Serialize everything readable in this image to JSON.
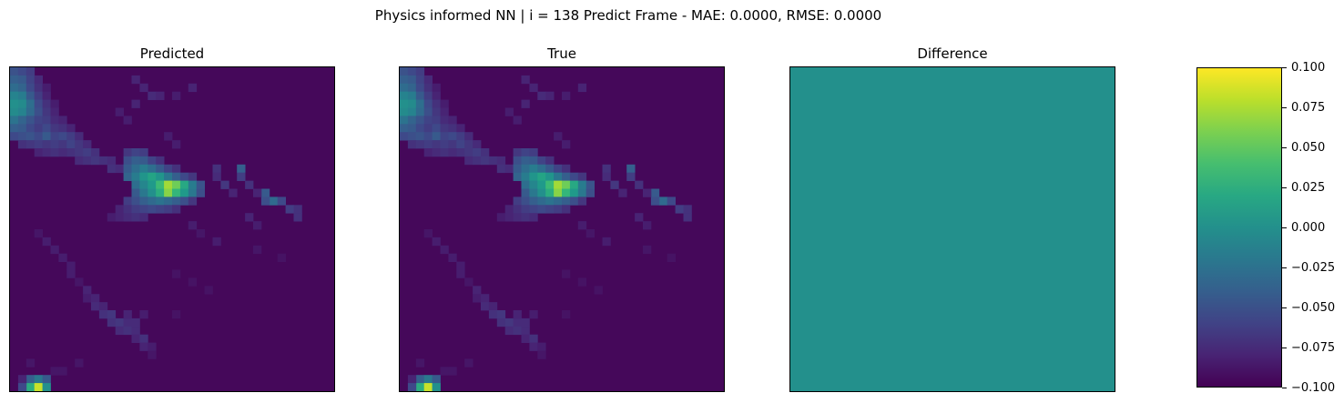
{
  "figure": {
    "title": "Physics informed NN | i = 138 Predict Frame - MAE: 0.0000, RMSE: 0.0000"
  },
  "chart_data": [
    {
      "type": "heatmap",
      "title": "Predicted",
      "grid": false,
      "colormap": "viridis",
      "rows": 40,
      "cols": 40,
      "background_value": 0.02,
      "cells": [
        [
          0,
          0,
          0.25
        ],
        [
          0,
          1,
          0.22
        ],
        [
          0,
          2,
          0.18
        ],
        [
          1,
          0,
          0.3
        ],
        [
          1,
          1,
          0.28
        ],
        [
          1,
          2,
          0.2
        ],
        [
          1,
          3,
          0.12
        ],
        [
          2,
          0,
          0.35
        ],
        [
          2,
          1,
          0.32
        ],
        [
          2,
          2,
          0.22
        ],
        [
          2,
          3,
          0.14
        ],
        [
          2,
          4,
          0.08
        ],
        [
          3,
          0,
          0.45
        ],
        [
          3,
          1,
          0.42
        ],
        [
          3,
          2,
          0.28
        ],
        [
          3,
          3,
          0.18
        ],
        [
          3,
          4,
          0.1
        ],
        [
          4,
          0,
          0.5
        ],
        [
          4,
          1,
          0.48
        ],
        [
          4,
          2,
          0.36
        ],
        [
          4,
          3,
          0.22
        ],
        [
          4,
          4,
          0.14
        ],
        [
          4,
          5,
          0.08
        ],
        [
          5,
          0,
          0.48
        ],
        [
          5,
          1,
          0.45
        ],
        [
          5,
          2,
          0.34
        ],
        [
          5,
          3,
          0.24
        ],
        [
          5,
          4,
          0.16
        ],
        [
          5,
          5,
          0.1
        ],
        [
          6,
          0,
          0.38
        ],
        [
          6,
          1,
          0.32
        ],
        [
          6,
          2,
          0.26
        ],
        [
          6,
          3,
          0.2
        ],
        [
          6,
          4,
          0.18
        ],
        [
          6,
          5,
          0.12
        ],
        [
          6,
          6,
          0.1
        ],
        [
          7,
          0,
          0.3
        ],
        [
          7,
          1,
          0.28
        ],
        [
          7,
          2,
          0.22
        ],
        [
          7,
          3,
          0.18
        ],
        [
          7,
          4,
          0.22
        ],
        [
          7,
          5,
          0.16
        ],
        [
          7,
          6,
          0.14
        ],
        [
          7,
          7,
          0.1
        ],
        [
          8,
          0,
          0.22
        ],
        [
          8,
          1,
          0.24
        ],
        [
          8,
          2,
          0.26
        ],
        [
          8,
          3,
          0.22
        ],
        [
          8,
          4,
          0.28
        ],
        [
          8,
          5,
          0.2
        ],
        [
          8,
          6,
          0.22
        ],
        [
          8,
          7,
          0.18
        ],
        [
          8,
          8,
          0.12
        ],
        [
          9,
          1,
          0.14
        ],
        [
          9,
          2,
          0.16
        ],
        [
          9,
          3,
          0.18
        ],
        [
          9,
          4,
          0.16
        ],
        [
          9,
          5,
          0.18
        ],
        [
          9,
          6,
          0.16
        ],
        [
          9,
          7,
          0.2
        ],
        [
          9,
          8,
          0.16
        ],
        [
          9,
          9,
          0.12
        ],
        [
          10,
          3,
          0.1
        ],
        [
          10,
          4,
          0.12
        ],
        [
          10,
          5,
          0.14
        ],
        [
          10,
          6,
          0.12
        ],
        [
          10,
          7,
          0.14
        ],
        [
          10,
          8,
          0.16
        ],
        [
          10,
          9,
          0.18
        ],
        [
          10,
          10,
          0.14
        ],
        [
          11,
          8,
          0.12
        ],
        [
          11,
          9,
          0.14
        ],
        [
          11,
          10,
          0.16
        ],
        [
          11,
          11,
          0.14
        ],
        [
          11,
          12,
          0.12
        ],
        [
          12,
          12,
          0.14
        ],
        [
          12,
          13,
          0.12
        ],
        [
          5,
          13,
          0.08
        ],
        [
          6,
          14,
          0.08
        ],
        [
          4,
          15,
          0.1
        ],
        [
          8,
          19,
          0.08
        ],
        [
          9,
          20,
          0.08
        ],
        [
          1,
          15,
          0.1
        ],
        [
          2,
          16,
          0.1
        ],
        [
          3,
          17,
          0.12
        ],
        [
          3,
          18,
          0.1
        ],
        [
          2,
          22,
          0.1
        ],
        [
          3,
          20,
          0.08
        ],
        [
          10,
          14,
          0.16
        ],
        [
          10,
          15,
          0.2
        ],
        [
          10,
          16,
          0.18
        ],
        [
          11,
          14,
          0.24
        ],
        [
          11,
          15,
          0.3
        ],
        [
          11,
          16,
          0.28
        ],
        [
          11,
          17,
          0.2
        ],
        [
          11,
          18,
          0.14
        ],
        [
          12,
          14,
          0.28
        ],
        [
          12,
          15,
          0.36
        ],
        [
          12,
          16,
          0.42
        ],
        [
          12,
          17,
          0.36
        ],
        [
          12,
          18,
          0.28
        ],
        [
          12,
          19,
          0.2
        ],
        [
          12,
          20,
          0.14
        ],
        [
          13,
          14,
          0.32
        ],
        [
          13,
          15,
          0.42
        ],
        [
          13,
          16,
          0.52
        ],
        [
          13,
          17,
          0.58
        ],
        [
          13,
          18,
          0.52
        ],
        [
          13,
          19,
          0.4
        ],
        [
          13,
          20,
          0.3
        ],
        [
          13,
          21,
          0.22
        ],
        [
          13,
          22,
          0.16
        ],
        [
          14,
          15,
          0.36
        ],
        [
          14,
          16,
          0.46
        ],
        [
          14,
          17,
          0.54
        ],
        [
          14,
          18,
          0.68
        ],
        [
          14,
          19,
          0.86
        ],
        [
          14,
          20,
          0.78
        ],
        [
          14,
          21,
          0.6
        ],
        [
          14,
          22,
          0.42
        ],
        [
          14,
          23,
          0.26
        ],
        [
          15,
          15,
          0.28
        ],
        [
          15,
          16,
          0.4
        ],
        [
          15,
          17,
          0.5
        ],
        [
          15,
          18,
          0.62
        ],
        [
          15,
          19,
          0.82
        ],
        [
          15,
          20,
          0.66
        ],
        [
          15,
          21,
          0.54
        ],
        [
          15,
          22,
          0.4
        ],
        [
          15,
          23,
          0.24
        ],
        [
          16,
          14,
          0.18
        ],
        [
          16,
          15,
          0.24
        ],
        [
          16,
          16,
          0.3
        ],
        [
          16,
          17,
          0.34
        ],
        [
          16,
          18,
          0.38
        ],
        [
          16,
          19,
          0.34
        ],
        [
          16,
          20,
          0.3
        ],
        [
          16,
          21,
          0.24
        ],
        [
          16,
          22,
          0.16
        ],
        [
          17,
          13,
          0.1
        ],
        [
          17,
          14,
          0.14
        ],
        [
          17,
          15,
          0.18
        ],
        [
          17,
          16,
          0.2
        ],
        [
          17,
          17,
          0.22
        ],
        [
          17,
          18,
          0.2
        ],
        [
          17,
          19,
          0.18
        ],
        [
          17,
          20,
          0.14
        ],
        [
          18,
          12,
          0.08
        ],
        [
          18,
          13,
          0.1
        ],
        [
          18,
          14,
          0.12
        ],
        [
          18,
          15,
          0.14
        ],
        [
          18,
          16,
          0.12
        ],
        [
          12,
          25,
          0.14
        ],
        [
          13,
          25,
          0.12
        ],
        [
          14,
          26,
          0.16
        ],
        [
          15,
          27,
          0.1
        ],
        [
          15,
          31,
          0.28
        ],
        [
          16,
          32,
          0.34
        ],
        [
          16,
          31,
          0.24
        ],
        [
          16,
          33,
          0.22
        ],
        [
          17,
          34,
          0.18
        ],
        [
          17,
          35,
          0.14
        ],
        [
          18,
          35,
          0.14
        ],
        [
          12,
          28,
          0.3
        ],
        [
          13,
          28,
          0.18
        ],
        [
          14,
          29,
          0.14
        ],
        [
          15,
          30,
          0.1
        ],
        [
          18,
          29,
          0.1
        ],
        [
          19,
          30,
          0.08
        ],
        [
          19,
          22,
          0.08
        ],
        [
          20,
          23,
          0.06
        ],
        [
          21,
          25,
          0.08
        ],
        [
          22,
          30,
          0.06
        ],
        [
          23,
          33,
          0.05
        ],
        [
          20,
          3,
          0.06
        ],
        [
          21,
          4,
          0.08
        ],
        [
          22,
          5,
          0.08
        ],
        [
          23,
          6,
          0.08
        ],
        [
          24,
          7,
          0.08
        ],
        [
          25,
          7,
          0.08
        ],
        [
          26,
          8,
          0.06
        ],
        [
          27,
          9,
          0.1
        ],
        [
          28,
          9,
          0.08
        ],
        [
          28,
          10,
          0.1
        ],
        [
          29,
          10,
          0.12
        ],
        [
          29,
          11,
          0.1
        ],
        [
          30,
          11,
          0.14
        ],
        [
          30,
          12,
          0.16
        ],
        [
          31,
          12,
          0.14
        ],
        [
          31,
          13,
          0.16
        ],
        [
          31,
          14,
          0.12
        ],
        [
          32,
          13,
          0.12
        ],
        [
          32,
          14,
          0.14
        ],
        [
          32,
          15,
          0.12
        ],
        [
          33,
          15,
          0.1
        ],
        [
          33,
          16,
          0.14
        ],
        [
          34,
          16,
          0.1
        ],
        [
          34,
          17,
          0.08
        ],
        [
          30,
          14,
          0.1
        ],
        [
          31,
          15,
          0.12
        ],
        [
          30,
          16,
          0.08
        ],
        [
          35,
          17,
          0.06
        ],
        [
          36,
          8,
          0.06
        ],
        [
          37,
          5,
          0.06
        ],
        [
          37,
          6,
          0.06
        ],
        [
          36,
          2,
          0.06
        ],
        [
          38,
          2,
          0.3
        ],
        [
          38,
          3,
          0.4
        ],
        [
          38,
          4,
          0.28
        ],
        [
          39,
          2,
          0.62
        ],
        [
          39,
          3,
          0.92
        ],
        [
          39,
          4,
          0.5
        ],
        [
          38,
          1,
          0.1
        ],
        [
          39,
          1,
          0.22
        ],
        [
          25,
          20,
          0.05
        ],
        [
          26,
          22,
          0.05
        ],
        [
          27,
          24,
          0.05
        ],
        [
          30,
          20,
          0.05
        ]
      ]
    },
    {
      "type": "heatmap",
      "title": "True",
      "grid": false,
      "colormap": "viridis",
      "same_as": "Predicted"
    },
    {
      "type": "heatmap",
      "title": "Difference",
      "grid": false,
      "colormap": "viridis",
      "value": 0.0,
      "vmin": -0.1,
      "vmax": 0.1
    },
    {
      "type": "colorbar",
      "colormap": "viridis",
      "range": [
        -0.1,
        0.1
      ],
      "ticks": [
        "0.100",
        "0.075",
        "0.050",
        "0.025",
        "0.000",
        "−0.025",
        "−0.050",
        "−0.075",
        "−0.100"
      ]
    }
  ]
}
